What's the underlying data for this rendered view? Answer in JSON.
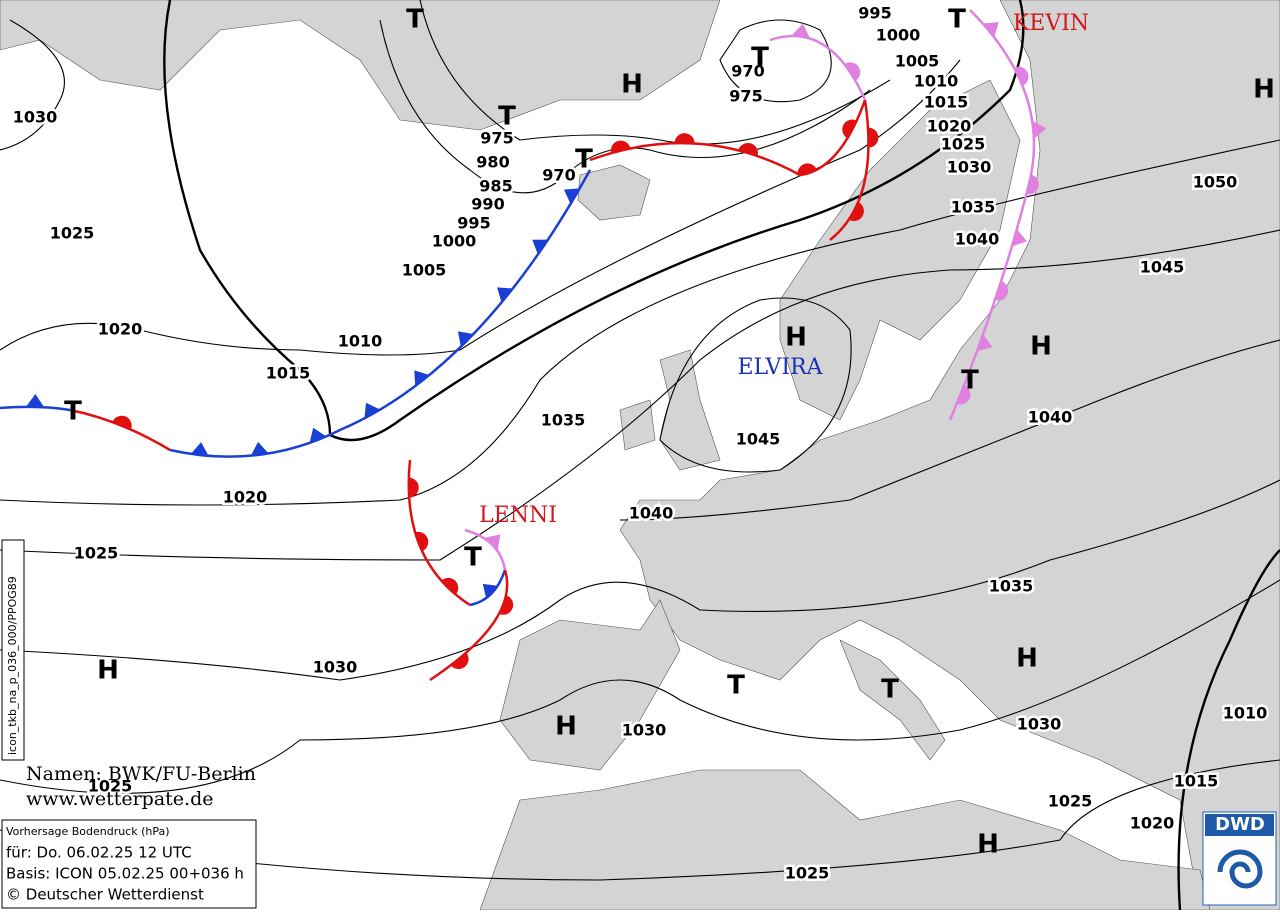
{
  "isobar_labels": [
    1030,
    1025,
    1020,
    1015,
    1010,
    1005,
    1000,
    995,
    990,
    985,
    980,
    975,
    970,
    970,
    975,
    995,
    1000,
    1005,
    1010,
    1015,
    1020,
    1025,
    1030,
    1035,
    1040,
    1045,
    1050,
    1040,
    1045,
    1035,
    1040,
    1020,
    1025,
    1030,
    1025,
    1030,
    1035,
    1030,
    1025,
    1020,
    1015,
    1010,
    1025
  ],
  "pressure_systems": [
    "T",
    "T",
    "H",
    "T",
    "T",
    "T",
    "H",
    "H",
    "H",
    "T",
    "T",
    "T",
    "H",
    "H",
    "T",
    "T",
    "H",
    "H"
  ],
  "storm_names": {
    "kevin": "KEVIN",
    "elvira": "ELVIRA",
    "lenni": "LENNI"
  },
  "credits": {
    "names": "Namen: BWK/FU-Berlin",
    "website": "www.wetterpate.de"
  },
  "info_box": {
    "product": "Vorhersage Bodendruck (hPa)",
    "valid": "für:  Do. 06.02.25  12 UTC",
    "base": "Basis: ICON  05.02.25 00+036 h",
    "copyright": "© Deutscher Wetterdienst"
  },
  "side_code": "icon_tkb_na_p_036_000/PPOG89",
  "logo": "DWD"
}
